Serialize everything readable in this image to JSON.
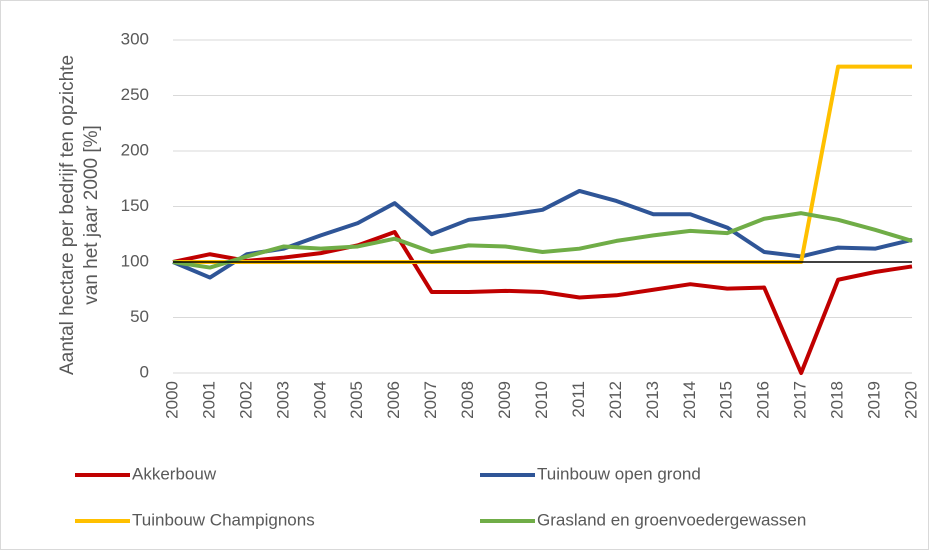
{
  "chart_data": {
    "type": "line",
    "ylabel": [
      "Aantal hectare per bedrijf ten opzichte",
      "van het jaar 2000 [%]"
    ],
    "categories": [
      "2000",
      "2001",
      "2002",
      "2003",
      "2004",
      "2005",
      "2006",
      "2007",
      "2008",
      "2009",
      "2010",
      "2011",
      "2012",
      "2013",
      "2014",
      "2015",
      "2016",
      "2017",
      "2018",
      "2019",
      "2020"
    ],
    "series": [
      {
        "name": "Akkerbouw",
        "color": "#c00000",
        "values": [
          100,
          107,
          101,
          104,
          108,
          115,
          127,
          73,
          73,
          74,
          73,
          68,
          70,
          75,
          80,
          76,
          77,
          0,
          84,
          91,
          96
        ]
      },
      {
        "name": "Tuinbouw open grond",
        "color": "#2f5597",
        "values": [
          100,
          86,
          107,
          112,
          124,
          135,
          153,
          125,
          138,
          142,
          147,
          164,
          155,
          143,
          143,
          131,
          109,
          105,
          113,
          112,
          120
        ]
      },
      {
        "name": "Tuinbouw Champignons",
        "color": "#ffc000",
        "values": [
          100,
          100,
          100,
          100,
          100,
          100,
          100,
          100,
          100,
          100,
          100,
          100,
          100,
          100,
          100,
          100,
          100,
          100,
          276,
          276,
          276
        ]
      },
      {
        "name": "Grasland en groenvoedergewassen",
        "color": "#70ad47",
        "values": [
          100,
          95,
          105,
          114,
          112,
          114,
          121,
          109,
          115,
          114,
          109,
          112,
          119,
          124,
          128,
          126,
          139,
          144,
          138,
          129,
          119
        ]
      }
    ],
    "ylim": [
      0,
      300
    ],
    "yticks": [
      0,
      50,
      100,
      150,
      200,
      250,
      300
    ],
    "grid": true,
    "x_axis_crosses": 100,
    "legend": "bottom"
  }
}
